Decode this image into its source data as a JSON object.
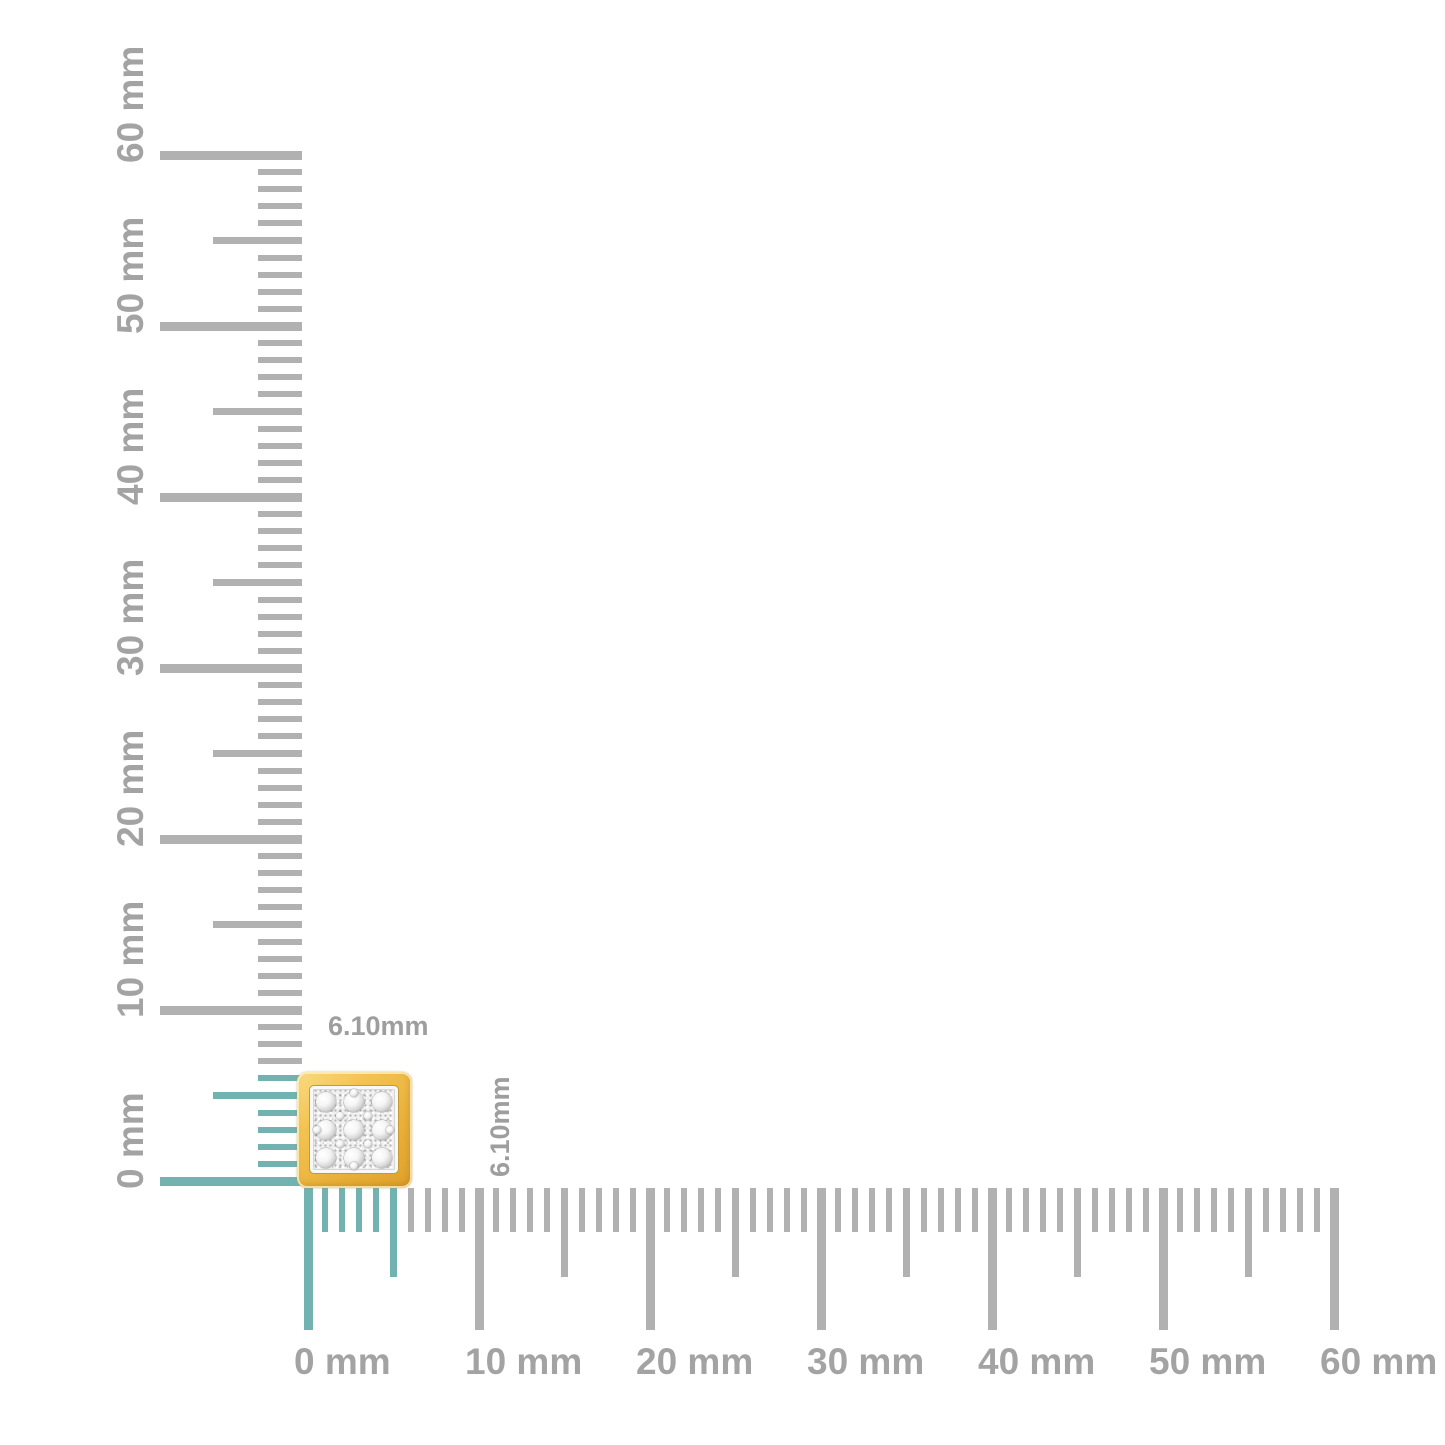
{
  "image": {
    "kind": "product-measurement-photo",
    "background_color": "#ffffff"
  },
  "rulers": {
    "unit": "mm",
    "min_mm": 0,
    "max_mm": 60,
    "label_step_mm": 10,
    "medium_tick_every_mm": 5,
    "tick_color_default": "#b1b1b1",
    "tick_color_highlight": "#72b3b1",
    "label_color": "#a3a3a3",
    "horizontal": {
      "labels": [
        "0 mm",
        "10 mm",
        "20 mm",
        "30 mm",
        "40 mm",
        "50 mm",
        "60 mm"
      ],
      "highlight_up_to_mm": 5
    },
    "vertical": {
      "labels": [
        "0 mm",
        "10 mm",
        "20 mm",
        "30 mm",
        "40 mm",
        "50 mm",
        "60 mm"
      ],
      "highlight_up_to_mm": 6
    }
  },
  "measurements": {
    "width_label": "6.10mm",
    "height_label": "6.10mm",
    "label_color": "#9e9e9e"
  },
  "product": {
    "description": "square pave diamond stud earring in yellow gold",
    "gold_color": "#eab23c",
    "gold_highlight_color": "#f9dc82",
    "pave_color": "#f0f0f0"
  }
}
